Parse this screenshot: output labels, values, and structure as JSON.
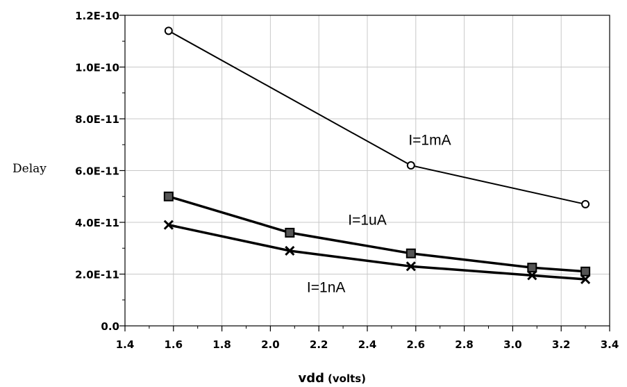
{
  "chart_data": {
    "type": "line",
    "title": "",
    "xlabel": "vdd",
    "xlabel_unit": "(volts)",
    "ylabel": "Delay",
    "xlim": [
      1.4,
      3.4
    ],
    "ylim": [
      0,
      1.2e-10
    ],
    "x_ticks": [
      "1.4",
      "1.6",
      "1.8",
      "2.0",
      "2.2",
      "2.4",
      "2.6",
      "2.8",
      "3.0",
      "3.2",
      "3.4"
    ],
    "y_ticks": [
      "0.0",
      "2.0E-11",
      "4.0E-11",
      "6.0E-11",
      "8.0E-11",
      "1.0E-10",
      "1.2E-10"
    ],
    "grid": true,
    "series": [
      {
        "name": "I=1mA",
        "marker": "circle",
        "x": [
          1.58,
          2.58,
          3.3
        ],
        "y": [
          1.14e-10,
          6.2e-11,
          4.7e-11
        ]
      },
      {
        "name": "I=1uA",
        "marker": "square",
        "x": [
          1.58,
          2.08,
          2.58,
          3.08,
          3.3
        ],
        "y": [
          5e-11,
          3.6e-11,
          2.8e-11,
          2.25e-11,
          2.1e-11
        ]
      },
      {
        "name": "I=1nA",
        "marker": "x",
        "x": [
          1.58,
          2.08,
          2.58,
          3.08,
          3.3
        ],
        "y": [
          3.9e-11,
          2.9e-11,
          2.3e-11,
          1.95e-11,
          1.8e-11
        ]
      }
    ]
  }
}
